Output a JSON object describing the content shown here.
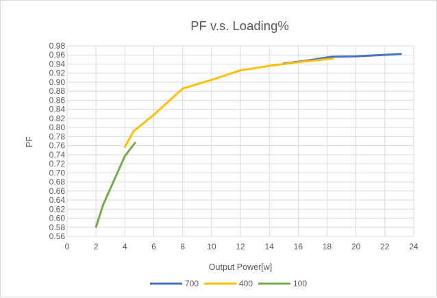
{
  "chart_data": {
    "type": "line",
    "title": "PF v.s. Loading%",
    "xlabel": "Output Power[w]",
    "ylabel": "PF",
    "xlim": [
      0,
      24
    ],
    "ylim": [
      0.56,
      0.98
    ],
    "xticks": [
      0,
      2,
      4,
      6,
      8,
      10,
      12,
      14,
      16,
      18,
      20,
      22,
      24
    ],
    "yticks": [
      0.56,
      0.58,
      0.6,
      0.62,
      0.64,
      0.66,
      0.68,
      0.7,
      0.72,
      0.74,
      0.76,
      0.78,
      0.8,
      0.82,
      0.84,
      0.86,
      0.88,
      0.9,
      0.92,
      0.94,
      0.96,
      0.98
    ],
    "grid": true,
    "legend": "bottom",
    "series": [
      {
        "name": "700",
        "color": "#4472c4",
        "points": [
          [
            15.0,
            0.941
          ],
          [
            16.5,
            0.947
          ],
          [
            18.3,
            0.956
          ],
          [
            20.0,
            0.957
          ],
          [
            23.1,
            0.962
          ]
        ]
      },
      {
        "name": "400",
        "color": "#ffc000",
        "points": [
          [
            4.0,
            0.757
          ],
          [
            4.6,
            0.792
          ],
          [
            6.0,
            0.828
          ],
          [
            8.0,
            0.886
          ],
          [
            10.0,
            0.905
          ],
          [
            12.0,
            0.926
          ],
          [
            14.0,
            0.936
          ],
          [
            16.0,
            0.944
          ],
          [
            18.4,
            0.952
          ]
        ]
      },
      {
        "name": "100",
        "color": "#70ad47",
        "points": [
          [
            2.0,
            0.581
          ],
          [
            2.5,
            0.63
          ],
          [
            3.0,
            0.666
          ],
          [
            4.0,
            0.737
          ],
          [
            4.7,
            0.766
          ]
        ]
      }
    ]
  }
}
